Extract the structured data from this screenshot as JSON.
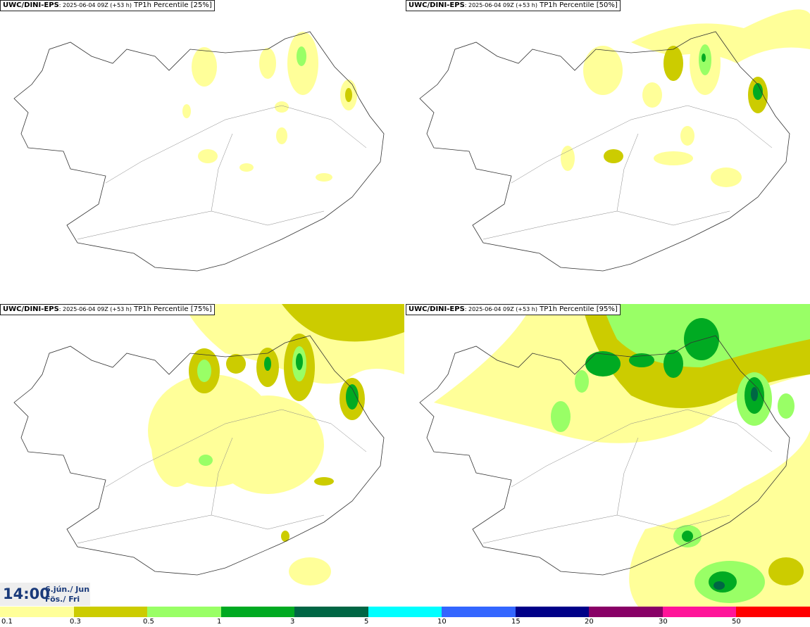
{
  "panels": [
    {
      "model": "UWC/DINI-EPS",
      "run": ": 2025-06-04 09Z (+53 h)",
      "product": " TP1h Percentile [25%]"
    },
    {
      "model": "UWC/DINI-EPS",
      "run": ": 2025-06-04 09Z (+53 h)",
      "product": " TP1h Percentile [50%]"
    },
    {
      "model": "UWC/DINI-EPS",
      "run": ": 2025-06-04 09Z (+53 h)",
      "product": " TP1h Percentile [75%]"
    },
    {
      "model": "UWC/DINI-EPS",
      "run": ": 2025-06-04 09Z (+53 h)",
      "product": " TP1h Percentile [95%]"
    }
  ],
  "valid_time": {
    "time": "14:00",
    "date_line1": "6.jún./ Jun",
    "date_line2": "Fös./ Fri"
  },
  "legend": {
    "colors": [
      "#ffff99",
      "#cccc00",
      "#99ff66",
      "#00aa22",
      "#006644",
      "#00ffff",
      "#3366ff",
      "#000088",
      "#880066",
      "#ff1499",
      "#ff0000"
    ],
    "labels": [
      "0.1",
      "0.3",
      "0.5",
      "1",
      "3",
      "5",
      "10",
      "15",
      "20",
      "30",
      "50"
    ]
  },
  "field_colors": {
    "light_yellow": "#ffff99",
    "olive": "#cccc00",
    "light_green": "#99ff66",
    "green": "#00aa22",
    "dark_green": "#006644"
  }
}
